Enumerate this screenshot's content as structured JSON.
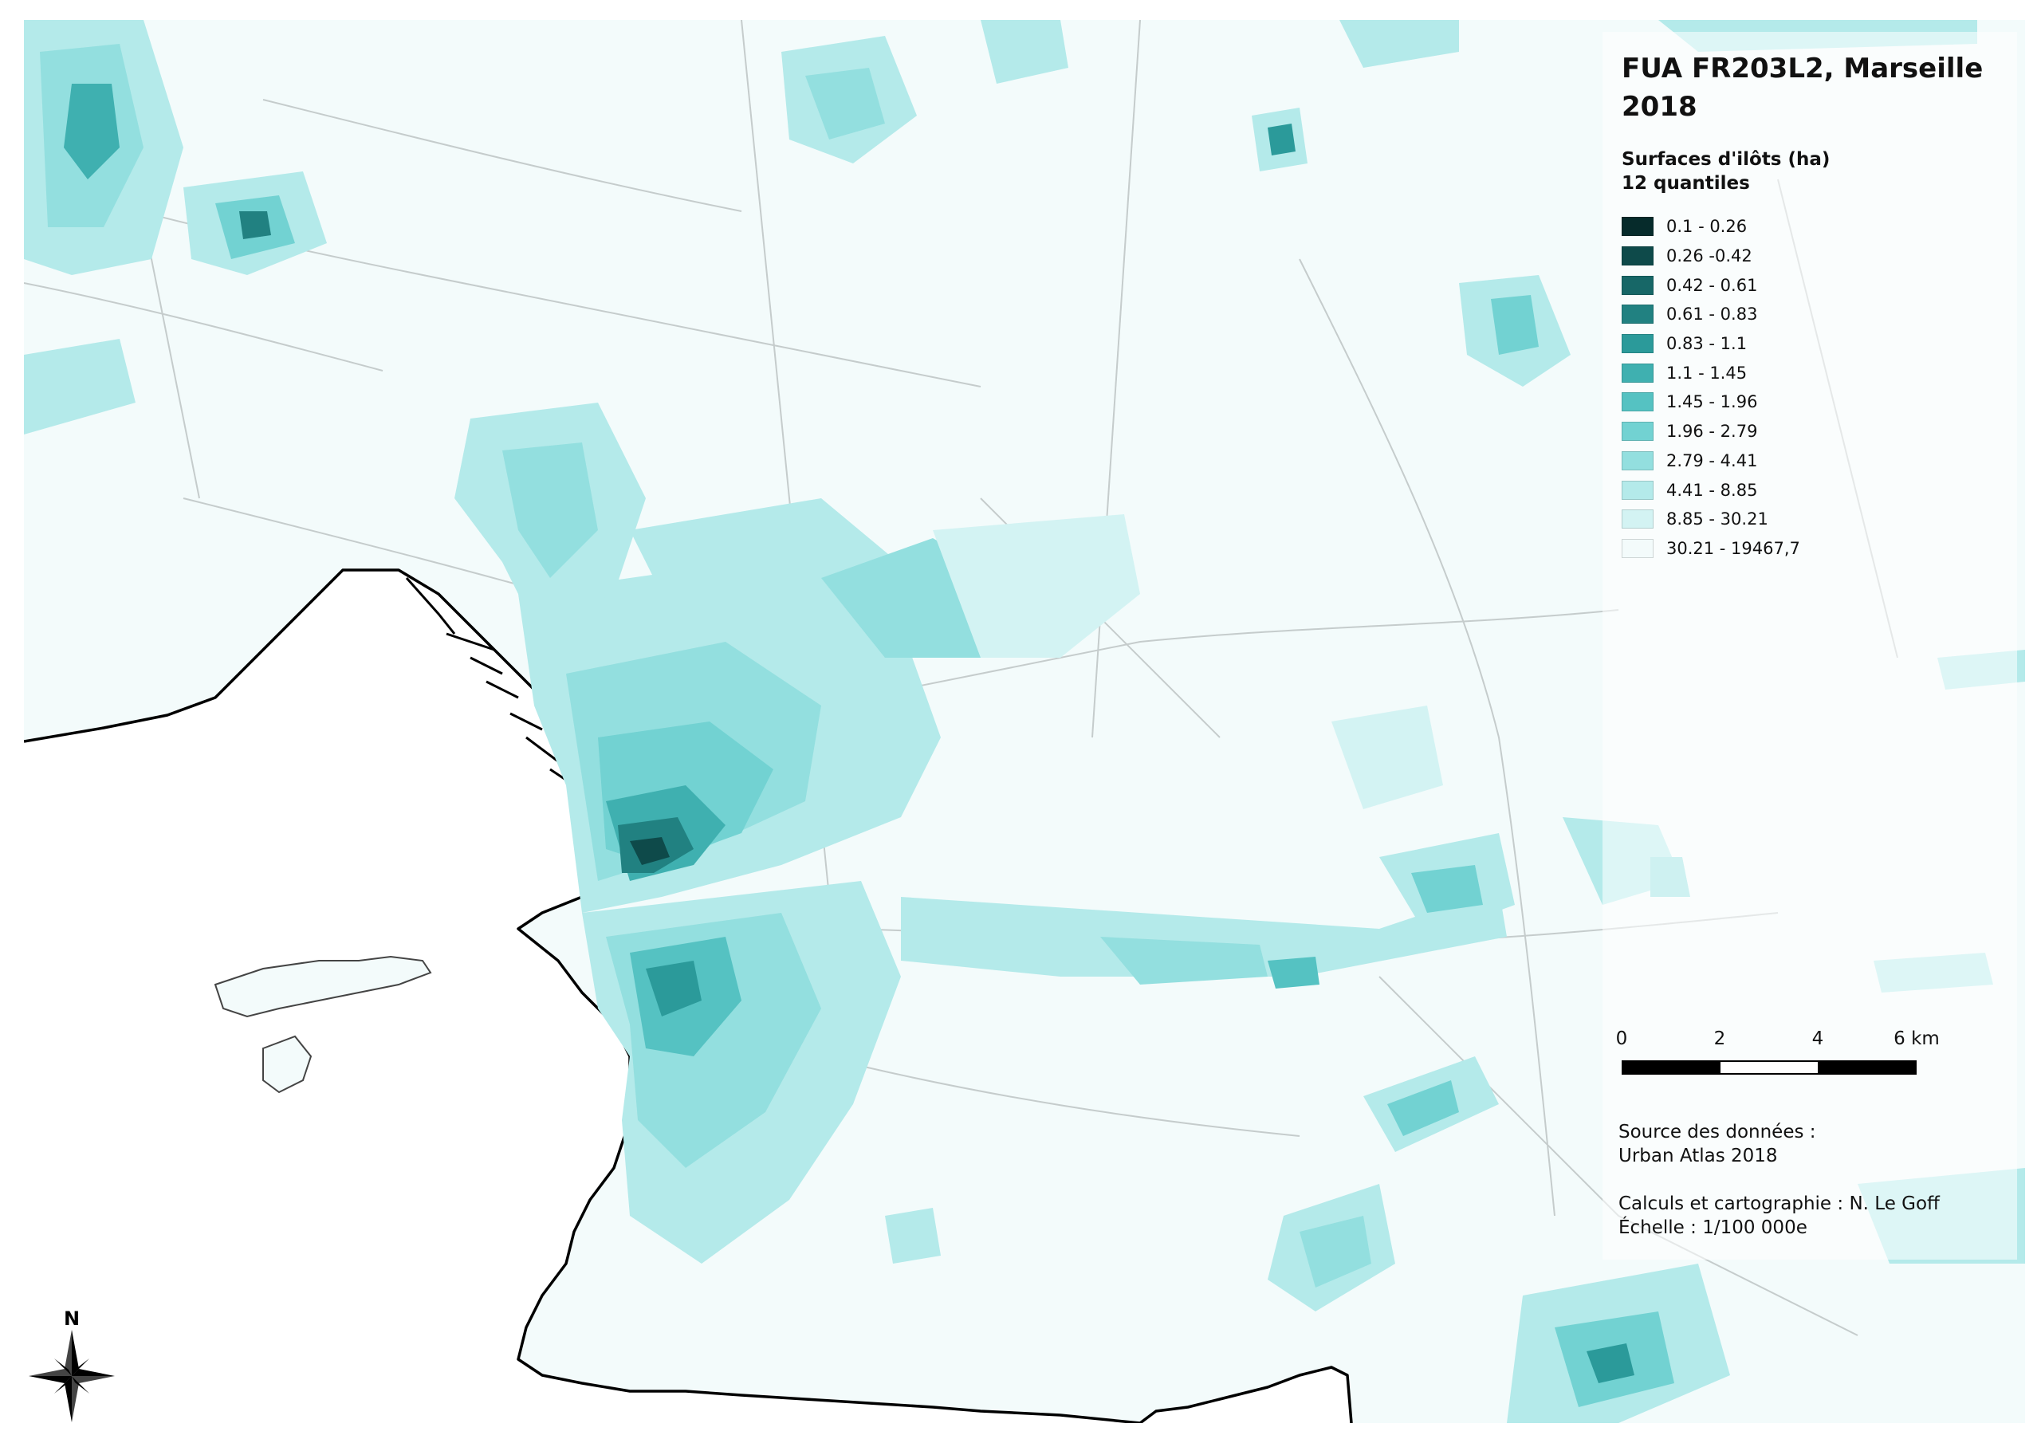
{
  "title": "FUA FR203L2, Marseille 2018",
  "legend": {
    "heading": "Surfaces d'ilôts (ha)\n12 quantiles",
    "classes": [
      {
        "label": "0.1 - 0.26",
        "color": "#062b2b"
      },
      {
        "label": "0.26 -0.42",
        "color": "#0e4a4a"
      },
      {
        "label": "0.42 - 0.61",
        "color": "#176767"
      },
      {
        "label": "0.61 - 0.83",
        "color": "#218181"
      },
      {
        "label": "0.83 - 1.1",
        "color": "#2b9a9a"
      },
      {
        "label": "1.1 - 1.45",
        "color": "#3fb0b0"
      },
      {
        "label": "1.45 - 1.96",
        "color": "#55c2c2"
      },
      {
        "label": "1.96 - 2.79",
        "color": "#72d2d2"
      },
      {
        "label": "2.79 - 4.41",
        "color": "#93dfdf"
      },
      {
        "label": "4.41 - 8.85",
        "color": "#b4eaea"
      },
      {
        "label": "8.85 - 30.21",
        "color": "#d3f3f3"
      },
      {
        "label": "30.21 - 19467,7",
        "color": "#f3fbfb"
      }
    ]
  },
  "scale": {
    "labels": [
      "0",
      "2",
      "4",
      "6 km"
    ],
    "colors": [
      "#000000",
      "#ffffff",
      "#000000"
    ]
  },
  "credits": "Source des données :\nUrban Atlas 2018\n\nCalculs et cartographie : N. Le Goff\nÉchelle : 1/100 000e",
  "north": "N",
  "colors": {
    "sea": "#ffffff",
    "land": "#f3fbfb",
    "coastline": "#000000",
    "roads": "#c5cccc"
  }
}
